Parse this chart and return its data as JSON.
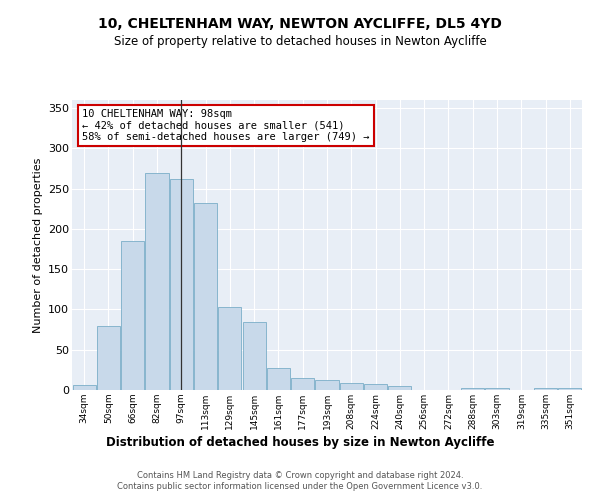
{
  "title": "10, CHELTENHAM WAY, NEWTON AYCLIFFE, DL5 4YD",
  "subtitle": "Size of property relative to detached houses in Newton Aycliffe",
  "xlabel": "Distribution of detached houses by size in Newton Aycliffe",
  "ylabel": "Number of detached properties",
  "bar_labels": [
    "34sqm",
    "50sqm",
    "66sqm",
    "82sqm",
    "97sqm",
    "113sqm",
    "129sqm",
    "145sqm",
    "161sqm",
    "177sqm",
    "193sqm",
    "208sqm",
    "224sqm",
    "240sqm",
    "256sqm",
    "272sqm",
    "288sqm",
    "303sqm",
    "319sqm",
    "335sqm",
    "351sqm"
  ],
  "bar_values": [
    6,
    80,
    185,
    270,
    262,
    232,
    103,
    85,
    27,
    15,
    12,
    9,
    7,
    5,
    0,
    0,
    3,
    3,
    0,
    3,
    3
  ],
  "bar_color": "#c8d9ea",
  "bar_edgecolor": "#7aaec8",
  "background_color": "#e8eef6",
  "grid_color": "#ffffff",
  "vline_x": 4.0,
  "vline_color": "#333333",
  "annotation_text": "10 CHELTENHAM WAY: 98sqm\n← 42% of detached houses are smaller (541)\n58% of semi-detached houses are larger (749) →",
  "annotation_box_color": "#ffffff",
  "annotation_box_edgecolor": "#cc0000",
  "ylim": [
    0,
    360
  ],
  "yticks": [
    0,
    50,
    100,
    150,
    200,
    250,
    300,
    350
  ],
  "footer_line1": "Contains HM Land Registry data © Crown copyright and database right 2024.",
  "footer_line2": "Contains public sector information licensed under the Open Government Licence v3.0."
}
